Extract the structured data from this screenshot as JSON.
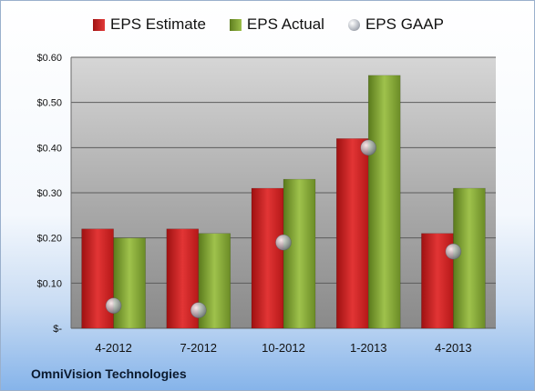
{
  "chart_data": {
    "type": "bar",
    "categories": [
      "4-2012",
      "7-2012",
      "10-2012",
      "1-2013",
      "4-2013"
    ],
    "series": [
      {
        "name": "EPS Estimate",
        "kind": "bar",
        "color": "#c81e1e",
        "values": [
          0.22,
          0.22,
          0.31,
          0.42,
          0.21
        ]
      },
      {
        "name": "EPS Actual",
        "kind": "bar",
        "color": "#7ea23a",
        "values": [
          0.2,
          0.21,
          0.33,
          0.56,
          0.31
        ]
      },
      {
        "name": "EPS GAAP",
        "kind": "marker",
        "color": "#a8acb4",
        "values": [
          0.05,
          0.04,
          0.19,
          0.4,
          0.17
        ]
      }
    ],
    "y_ticks": [
      0,
      0.1,
      0.2,
      0.3,
      0.4,
      0.5,
      0.6
    ],
    "y_tick_labels": [
      "$-",
      "$0.10",
      "$0.20",
      "$0.30",
      "$0.40",
      "$0.50",
      "$0.60"
    ],
    "ylim": [
      0,
      0.6
    ],
    "grid": true,
    "legend_position": "top"
  },
  "company_name": "OmniVision Technologies"
}
